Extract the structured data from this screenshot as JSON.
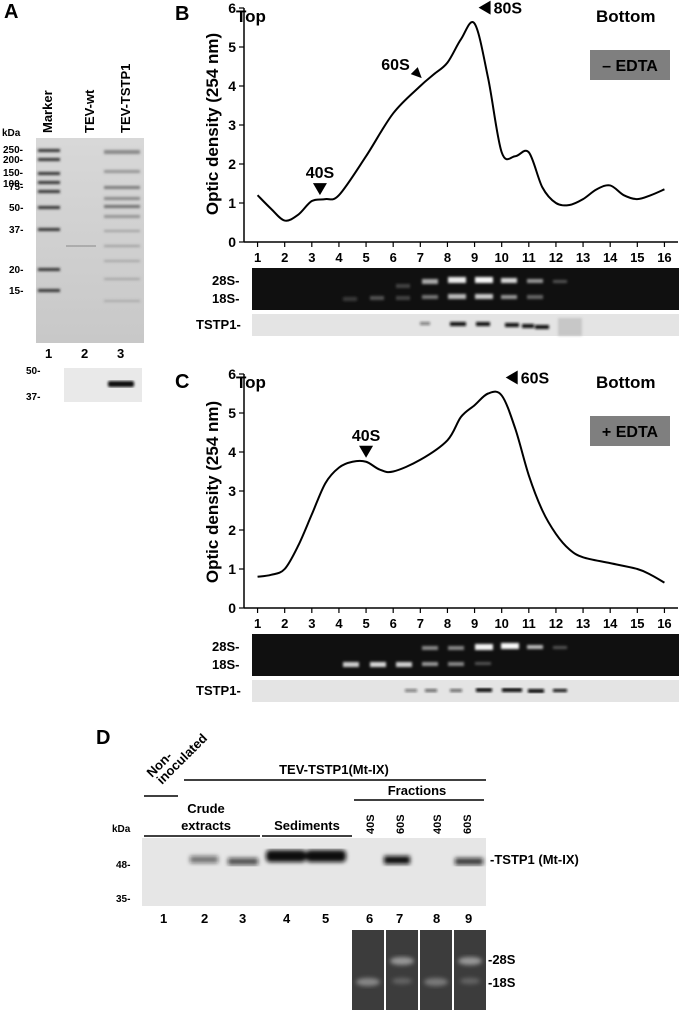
{
  "panel_a": {
    "letter": "A",
    "lane_headers": [
      "Marker",
      "TEV-wt",
      "TEV-TSTP1"
    ],
    "kda": "kDa",
    "markers": [
      "250-",
      "200-",
      "150-",
      "100-",
      "75-",
      "50-",
      "37-",
      "20-",
      "15-"
    ],
    "lane_numbers": [
      "1",
      "2",
      "3"
    ],
    "blot_markers": [
      "50-",
      "37-"
    ]
  },
  "panel_b": {
    "letter": "B",
    "top": "Top",
    "bottom": "Bottom",
    "badge": "– EDTA",
    "badge_color": "#7f7f7f",
    "peak_labels": [
      "40S",
      "60S",
      "80S"
    ],
    "gel_labels": [
      "28S-",
      "18S-"
    ],
    "blot_label": "TSTP1-"
  },
  "panel_c": {
    "letter": "C",
    "top": "Top",
    "bottom": "Bottom",
    "badge": "+ EDTA",
    "badge_color": "#7f7f7f",
    "peak_labels": [
      "40S",
      "60S"
    ],
    "gel_labels": [
      "28S-",
      "18S-"
    ],
    "blot_label": "TSTP1-"
  },
  "panel_d": {
    "letter": "D",
    "non_inoculated": [
      "Non-",
      "inoculated"
    ],
    "tev_header": "TEV-TSTP1(Mt-IX)",
    "fractions": "Fractions",
    "crude": [
      "Crude",
      "extracts"
    ],
    "sediments": "Sediments",
    "fraction_labels": [
      "40S",
      "60S",
      "40S",
      "60S"
    ],
    "kda": "kDa",
    "markers": [
      "48-",
      "35-"
    ],
    "band_label": "-TSTP1 (Mt-IX)",
    "lane_numbers": [
      "1",
      "2",
      "3",
      "4",
      "5",
      "6",
      "7",
      "8",
      "9"
    ],
    "rna_labels": [
      "-28S",
      "-18S"
    ]
  },
  "chart_data": [
    {
      "type": "line",
      "title": "",
      "ylabel": "Optic density (254 nm)",
      "xlabel": "",
      "x_ticks": [
        "1",
        "2",
        "3",
        "4",
        "5",
        "6",
        "7",
        "8",
        "9",
        "10",
        "11",
        "12",
        "13",
        "14",
        "15",
        "16"
      ],
      "y_ticks": [
        0,
        1,
        2,
        3,
        4,
        5,
        6
      ],
      "ylim": [
        0,
        6
      ],
      "xlim": [
        0.5,
        16.5
      ],
      "grid": false,
      "series": [
        {
          "x": [
            1,
            1.5,
            2,
            2.5,
            3,
            3.5,
            4,
            5,
            6,
            7,
            7.5,
            8,
            8.5,
            9,
            9.5,
            10,
            10.5,
            11,
            11.5,
            12,
            12.5,
            13,
            13.5,
            14,
            14.5,
            15,
            15.5,
            16
          ],
          "y": [
            1.2,
            0.85,
            0.55,
            0.7,
            1.05,
            1.1,
            1.2,
            2.2,
            3.3,
            4.0,
            4.3,
            4.6,
            5.2,
            5.6,
            4.2,
            2.3,
            2.2,
            2.3,
            1.4,
            1.0,
            0.95,
            1.1,
            1.35,
            1.45,
            1.2,
            1.1,
            1.2,
            1.35
          ]
        }
      ],
      "annotations": [
        {
          "label": "40S",
          "x": 3.3,
          "y": 1.1
        },
        {
          "label": "60S",
          "x": 7.2,
          "y": 4.1
        },
        {
          "label": "80S",
          "x": 9.0,
          "y": 5.6
        }
      ]
    },
    {
      "type": "line",
      "title": "",
      "ylabel": "Optic density (254 nm)",
      "xlabel": "",
      "x_ticks": [
        "1",
        "2",
        "3",
        "4",
        "5",
        "6",
        "7",
        "8",
        "9",
        "10",
        "11",
        "12",
        "13",
        "14",
        "15",
        "16"
      ],
      "y_ticks": [
        0,
        1,
        2,
        3,
        4,
        5,
        6
      ],
      "ylim": [
        0,
        6
      ],
      "xlim": [
        0.5,
        16.5
      ],
      "grid": false,
      "series": [
        {
          "x": [
            1,
            1.5,
            2,
            2.5,
            3,
            3.5,
            4,
            4.5,
            5,
            5.5,
            6,
            7,
            8,
            8.5,
            9,
            9.5,
            10,
            10.5,
            11,
            11.5,
            12,
            12.5,
            13,
            14,
            15,
            15.5,
            16
          ],
          "y": [
            0.8,
            0.85,
            1.0,
            1.6,
            2.4,
            3.2,
            3.6,
            3.75,
            3.75,
            3.55,
            3.5,
            3.8,
            4.3,
            4.9,
            5.2,
            5.5,
            5.45,
            4.6,
            3.4,
            2.5,
            1.9,
            1.5,
            1.3,
            1.15,
            1.0,
            0.85,
            0.65
          ]
        }
      ],
      "annotations": [
        {
          "label": "40S",
          "x": 5.0,
          "y": 3.75
        },
        {
          "label": "60S",
          "x": 10.0,
          "y": 5.5
        }
      ]
    }
  ]
}
